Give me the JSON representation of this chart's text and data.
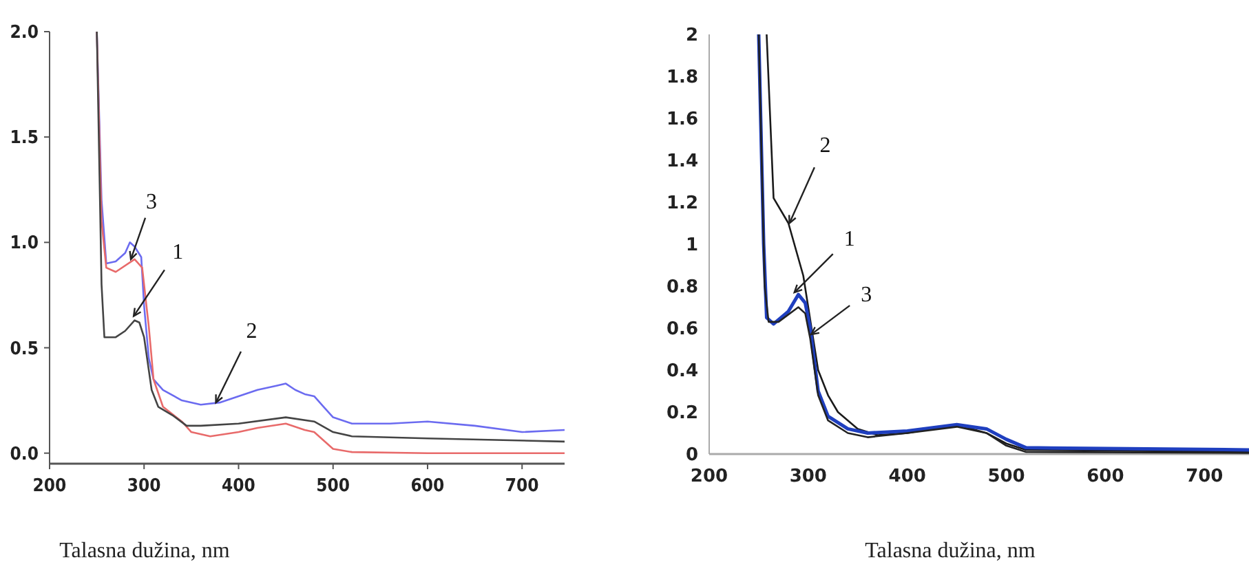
{
  "chart_data": [
    {
      "type": "line",
      "xlabel": "Talasna dužina, nm",
      "xlim": [
        200,
        745
      ],
      "ylim": [
        -0.05,
        2.0
      ],
      "xticks": [
        200,
        300,
        400,
        500,
        600,
        700
      ],
      "yticks": [
        {
          "value": 0,
          "label": "0.0"
        },
        {
          "value": 0.5,
          "label": "0.5"
        },
        {
          "value": 1,
          "label": "1.0"
        },
        {
          "value": 1.5,
          "label": "1.5"
        },
        {
          "value": 2,
          "label": "2.0"
        }
      ],
      "grid": false,
      "marker": "none",
      "line_style": "solid",
      "series": [
        {
          "color": "#6b6bf0",
          "x": [
            250,
            255,
            260,
            270,
            280,
            285,
            290,
            297,
            300,
            305,
            310,
            320,
            340,
            360,
            380,
            400,
            420,
            440,
            450,
            460,
            470,
            480,
            490,
            500,
            520,
            560,
            600,
            650,
            700,
            745
          ],
          "values": [
            2.0,
            1.2,
            0.9,
            0.91,
            0.95,
            1.0,
            0.98,
            0.93,
            0.7,
            0.45,
            0.35,
            0.3,
            0.25,
            0.23,
            0.24,
            0.27,
            0.3,
            0.32,
            0.33,
            0.3,
            0.28,
            0.27,
            0.22,
            0.17,
            0.14,
            0.14,
            0.15,
            0.13,
            0.1,
            0.11
          ]
        },
        {
          "color": "#e86a6a",
          "x": [
            250,
            255,
            260,
            270,
            290,
            298,
            305,
            310,
            320,
            340,
            350,
            370,
            400,
            420,
            450,
            470,
            480,
            500,
            520,
            600,
            745
          ],
          "values": [
            2.0,
            1.1,
            0.88,
            0.86,
            0.92,
            0.88,
            0.6,
            0.35,
            0.22,
            0.15,
            0.1,
            0.08,
            0.1,
            0.12,
            0.14,
            0.11,
            0.1,
            0.02,
            0.005,
            0.0,
            0.0
          ]
        },
        {
          "color": "#444444",
          "x": [
            250,
            255,
            258,
            270,
            280,
            290,
            295,
            300,
            308,
            315,
            330,
            345,
            360,
            400,
            450,
            480,
            500,
            520,
            600,
            745
          ],
          "values": [
            2.0,
            0.8,
            0.55,
            0.55,
            0.58,
            0.63,
            0.62,
            0.55,
            0.3,
            0.22,
            0.18,
            0.13,
            0.13,
            0.14,
            0.17,
            0.15,
            0.1,
            0.08,
            0.07,
            0.055
          ]
        }
      ],
      "annotations": [
        {
          "text": "3",
          "x": 286,
          "y": 0.92
        },
        {
          "text": "1",
          "x": 289,
          "y": 0.65
        },
        {
          "text": "2",
          "x": 376,
          "y": 0.24
        }
      ]
    },
    {
      "type": "line",
      "xlabel": "Talasna dužina, nm",
      "xlim": [
        200,
        745
      ],
      "ylim": [
        0,
        2
      ],
      "xticks": [
        200,
        300,
        400,
        500,
        600,
        700
      ],
      "yticks": [
        0,
        0.2,
        0.4,
        0.6,
        0.8,
        1,
        1.2,
        1.4,
        1.6,
        1.8,
        2
      ],
      "grid": false,
      "marker": "none",
      "line_style": "solid",
      "series": [
        {
          "color": "#1a1a1a",
          "x": [
            258,
            265,
            280,
            295,
            300,
            305,
            310,
            320,
            330,
            350,
            370,
            400,
            450,
            480,
            500,
            520,
            745
          ],
          "values": [
            2.0,
            1.22,
            1.1,
            0.85,
            0.7,
            0.55,
            0.4,
            0.28,
            0.2,
            0.12,
            0.09,
            0.1,
            0.14,
            0.1,
            0.05,
            0.02,
            0.01
          ]
        },
        {
          "color": "#1f3fbf",
          "x": [
            250,
            255,
            258,
            265,
            280,
            290,
            297,
            302,
            310,
            320,
            340,
            360,
            400,
            450,
            480,
            500,
            520,
            745
          ],
          "values": [
            2.0,
            1.0,
            0.65,
            0.62,
            0.68,
            0.76,
            0.72,
            0.6,
            0.3,
            0.18,
            0.12,
            0.1,
            0.11,
            0.14,
            0.12,
            0.07,
            0.03,
            0.02
          ]
        },
        {
          "color": "#222222",
          "x": [
            250,
            256,
            260,
            270,
            290,
            297,
            302,
            310,
            320,
            340,
            360,
            400,
            450,
            480,
            500,
            520,
            745
          ],
          "values": [
            2.0,
            0.8,
            0.63,
            0.63,
            0.7,
            0.67,
            0.55,
            0.28,
            0.16,
            0.1,
            0.08,
            0.1,
            0.13,
            0.1,
            0.04,
            0.01,
            0.005
          ]
        }
      ],
      "annotations": [
        {
          "text": "2",
          "x": 281,
          "y": 1.1
        },
        {
          "text": "1",
          "x": 286,
          "y": 0.77
        },
        {
          "text": "3",
          "x": 303,
          "y": 0.57
        }
      ]
    }
  ]
}
